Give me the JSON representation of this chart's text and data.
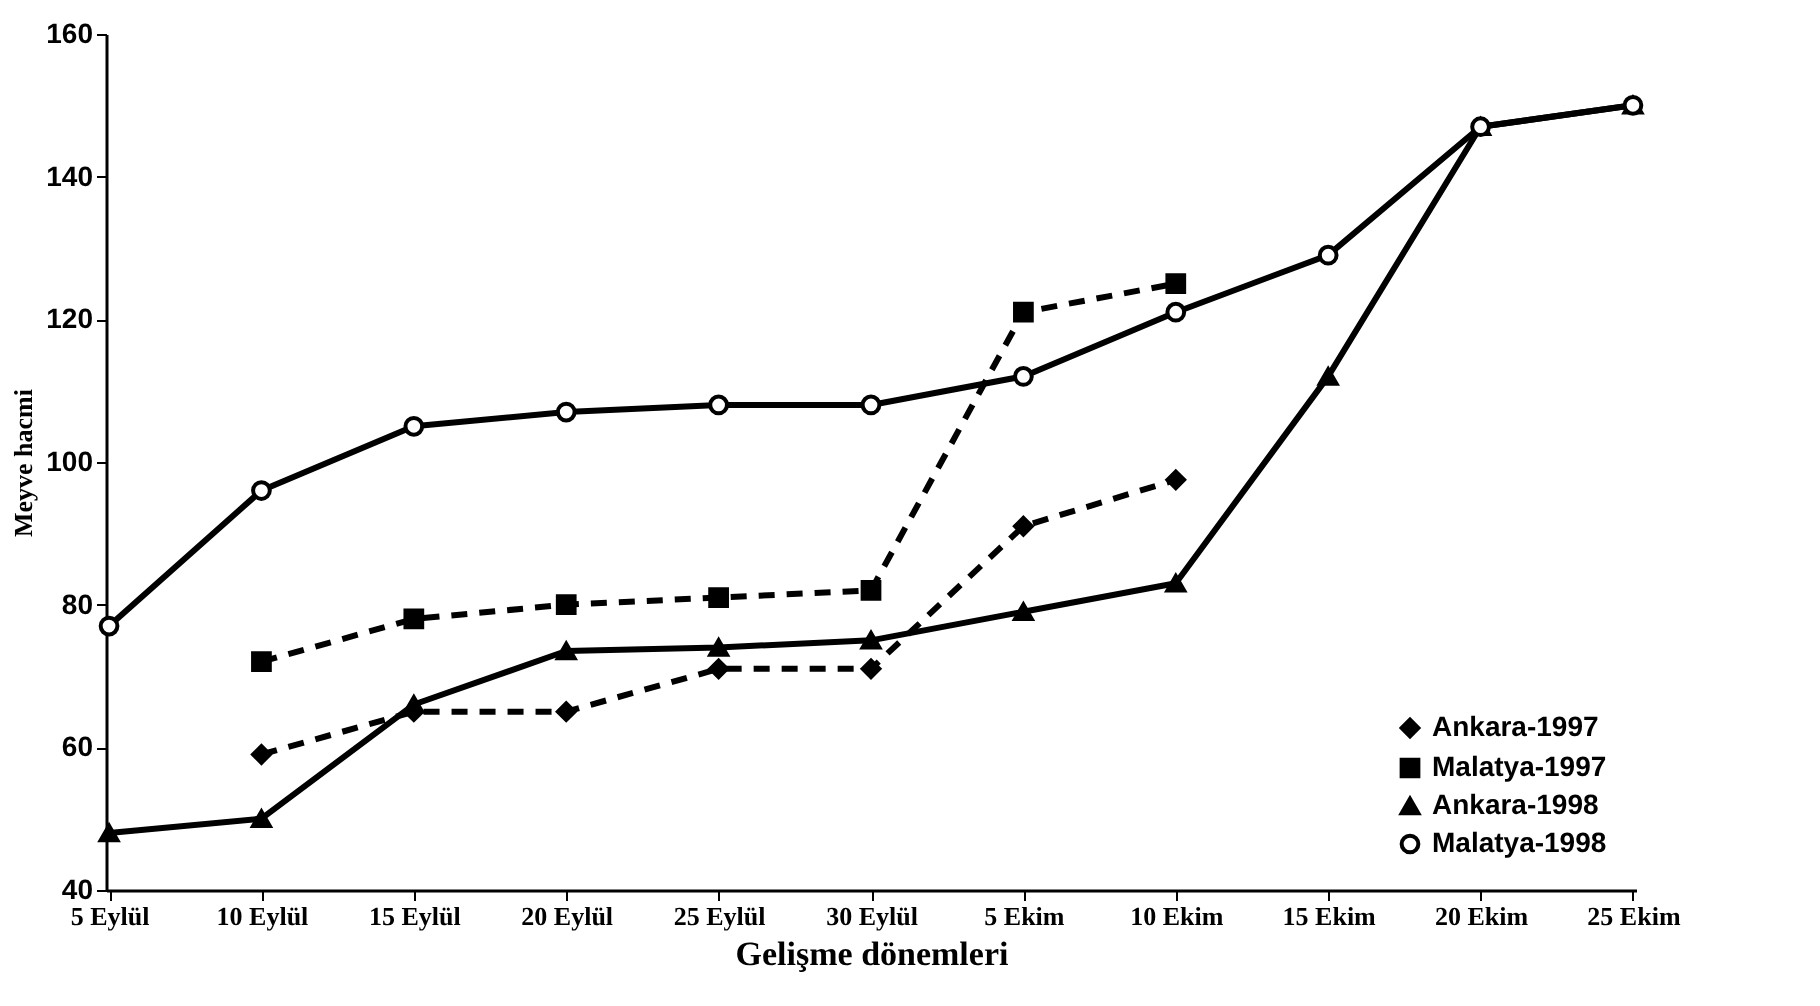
{
  "chart_data": {
    "type": "line",
    "xlabel": "Gelişme dönemleri",
    "ylabel": "Meyve hacmi",
    "categories": [
      "5 Eylül",
      "10 Eylül",
      "15 Eylül",
      "20 Eylül",
      "25 Eylül",
      "30 Eylül",
      "5 Ekim",
      "10 Ekim",
      "15 Ekim",
      "20 Ekim",
      "25 Ekim"
    ],
    "ylim": [
      40,
      160
    ],
    "yticks": [
      40,
      60,
      80,
      100,
      120,
      140,
      160
    ],
    "grid": false,
    "legend": "bottom right",
    "series": [
      {
        "name": "Ankara-1997",
        "color": "#000000",
        "marker": "diamond",
        "line_style": "dashed",
        "values": [
          null,
          59,
          65,
          65,
          71,
          71,
          91,
          97.5,
          null,
          null,
          null
        ]
      },
      {
        "name": "Malatya-1997",
        "color": "#000000",
        "marker": "square",
        "line_style": "dashed",
        "values": [
          null,
          72,
          78,
          80,
          81,
          82,
          121,
          125,
          null,
          null,
          null
        ]
      },
      {
        "name": "Ankara-1998",
        "color": "#000000",
        "marker": "triangle",
        "line_style": "solid",
        "values": [
          48,
          50,
          66,
          73.5,
          74,
          75,
          79,
          83,
          112,
          147,
          150
        ]
      },
      {
        "name": "Malatya-1998",
        "color": "#000000",
        "marker": "circle",
        "line_style": "solid",
        "values": [
          77,
          96,
          105,
          107,
          108,
          108,
          112,
          121,
          129,
          147,
          150
        ]
      }
    ]
  }
}
